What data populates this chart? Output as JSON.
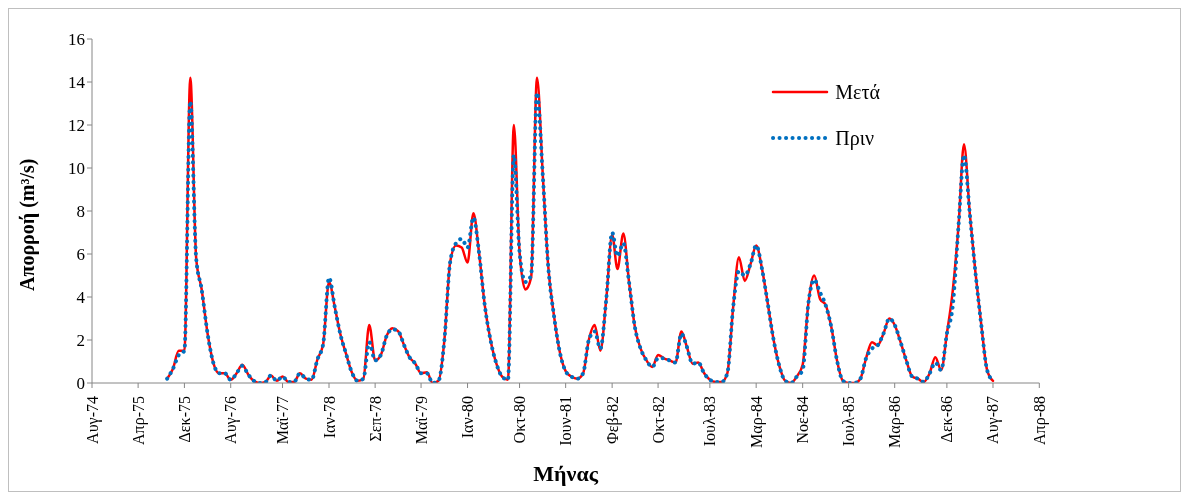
{
  "chart_data": {
    "type": "line",
    "xlabel": "Μήνας",
    "ylabel": "Απορροή (m³/s)",
    "x": [
      "1975-09",
      "1975-10",
      "1975-11",
      "1975-12",
      "1976-01",
      "1976-02",
      "1976-03",
      "1976-04",
      "1976-05",
      "1976-06",
      "1976-07",
      "1976-08",
      "1976-09",
      "1976-10",
      "1976-11",
      "1976-12",
      "1977-01",
      "1977-02",
      "1977-03",
      "1977-04",
      "1977-05",
      "1977-06",
      "1977-07",
      "1977-08",
      "1977-09",
      "1977-10",
      "1977-11",
      "1977-12",
      "1978-01",
      "1978-02",
      "1978-03",
      "1978-04",
      "1978-05",
      "1978-06",
      "1978-07",
      "1978-08",
      "1978-09",
      "1978-10",
      "1978-11",
      "1978-12",
      "1979-01",
      "1979-02",
      "1979-03",
      "1979-04",
      "1979-05",
      "1979-06",
      "1979-07",
      "1979-08",
      "1979-09",
      "1979-10",
      "1979-11",
      "1979-12",
      "1980-01",
      "1980-02",
      "1980-03",
      "1980-04",
      "1980-05",
      "1980-06",
      "1980-07",
      "1980-08",
      "1980-09",
      "1980-10",
      "1980-11",
      "1980-12",
      "1981-01",
      "1981-02",
      "1981-03",
      "1981-04",
      "1981-05",
      "1981-06",
      "1981-07",
      "1981-08",
      "1981-09",
      "1981-10",
      "1981-11",
      "1981-12",
      "1982-01",
      "1982-02",
      "1982-03",
      "1982-04",
      "1982-05",
      "1982-06",
      "1982-07",
      "1982-08",
      "1982-09",
      "1982-10",
      "1982-11",
      "1982-12",
      "1983-01",
      "1983-02",
      "1983-03",
      "1983-04",
      "1983-05",
      "1983-06",
      "1983-07",
      "1983-08",
      "1983-09",
      "1983-10",
      "1983-11",
      "1983-12",
      "1984-01",
      "1984-02",
      "1984-03",
      "1984-04",
      "1984-05",
      "1984-06",
      "1984-07",
      "1984-08",
      "1984-09",
      "1984-10",
      "1984-11",
      "1984-12",
      "1985-01",
      "1985-02",
      "1985-03",
      "1985-04",
      "1985-05",
      "1985-06",
      "1985-07",
      "1985-08",
      "1985-09",
      "1985-10",
      "1985-11",
      "1985-12",
      "1986-01",
      "1986-02",
      "1986-03",
      "1986-04",
      "1986-05",
      "1986-06",
      "1986-07",
      "1986-08",
      "1986-09",
      "1986-10",
      "1986-11",
      "1986-12",
      "1987-01",
      "1987-02",
      "1987-03",
      "1987-04",
      "1987-05",
      "1987-06",
      "1987-07",
      "1987-08"
    ],
    "series": [
      {
        "name": "Μετά",
        "color": "#ff0000",
        "line_style": "solid",
        "values": [
          0.2,
          0.65,
          1.5,
          1.5,
          14.2,
          5.8,
          4.35,
          2.3,
          0.95,
          0.45,
          0.45,
          0.15,
          0.45,
          0.85,
          0.4,
          0.1,
          0,
          0.05,
          0.35,
          0.1,
          0.3,
          0.05,
          0.05,
          0.45,
          0.2,
          0.15,
          1.1,
          1.8,
          4.7,
          3.5,
          2.3,
          1.35,
          0.5,
          0.1,
          0.2,
          2.7,
          1.05,
          1.3,
          2.2,
          2.55,
          2.4,
          1.75,
          1.2,
          0.9,
          0.45,
          0.5,
          0,
          0.1,
          2.0,
          5.6,
          6.4,
          6.3,
          5.6,
          7.9,
          6.1,
          3.6,
          2.0,
          0.9,
          0.3,
          0.15,
          12.0,
          6.1,
          4.35,
          4.9,
          14.2,
          9.6,
          5.45,
          3.1,
          1.45,
          0.55,
          0.3,
          0.2,
          0.45,
          2.0,
          2.7,
          1.5,
          3.9,
          6.9,
          5.3,
          6.95,
          4.7,
          2.6,
          1.6,
          1.05,
          0.75,
          1.3,
          1.15,
          1.05,
          0.95,
          2.4,
          1.7,
          0.9,
          0.95,
          0.45,
          0.15,
          0.05,
          0.05,
          0.45,
          3.55,
          5.85,
          4.75,
          5.55,
          6.4,
          5.3,
          3.7,
          2.0,
          0.8,
          0.1,
          0,
          0.3,
          0.85,
          3.7,
          5.0,
          3.9,
          3.65,
          2.6,
          1.05,
          0.1,
          0,
          0,
          0.2,
          1.15,
          1.9,
          1.75,
          2.3,
          3.0,
          2.7,
          1.9,
          1.05,
          0.3,
          0.2,
          0.05,
          0.45,
          1.2,
          0.6,
          2.3,
          4.3,
          7.4,
          11.1,
          7.85,
          5.1,
          2.65,
          0.6,
          0.1
        ]
      },
      {
        "name": "Πριν",
        "color": "#0070c0",
        "line_style": "dotted",
        "values": [
          0.2,
          0.65,
          1.3,
          1.5,
          13.1,
          5.8,
          4.35,
          2.3,
          0.95,
          0.45,
          0.45,
          0.15,
          0.45,
          0.8,
          0.4,
          0.1,
          0,
          0.05,
          0.35,
          0.1,
          0.3,
          0.05,
          0.05,
          0.45,
          0.2,
          0.15,
          1.1,
          1.8,
          4.9,
          3.5,
          2.3,
          1.35,
          0.5,
          0.1,
          0.2,
          1.9,
          1.05,
          1.3,
          2.2,
          2.5,
          2.4,
          1.75,
          1.2,
          0.9,
          0.45,
          0.45,
          0,
          0.1,
          2.0,
          5.6,
          6.5,
          6.7,
          6.3,
          7.7,
          6.1,
          3.6,
          2.0,
          0.9,
          0.3,
          0.15,
          10.6,
          6.1,
          4.7,
          5.0,
          13.5,
          9.6,
          5.45,
          3.1,
          1.45,
          0.55,
          0.3,
          0.2,
          0.45,
          2.0,
          2.4,
          1.6,
          3.9,
          7.0,
          5.9,
          6.5,
          4.7,
          2.6,
          1.6,
          1.05,
          0.75,
          1.15,
          1.15,
          1.05,
          0.95,
          2.3,
          1.7,
          0.9,
          0.95,
          0.45,
          0.15,
          0.05,
          0.05,
          0.45,
          3.55,
          5.2,
          5.0,
          5.55,
          6.4,
          5.3,
          3.7,
          2.0,
          0.8,
          0.1,
          0,
          0.3,
          0.6,
          3.7,
          4.8,
          4.2,
          3.65,
          2.6,
          1.05,
          0.1,
          0,
          0,
          0.2,
          1.15,
          1.6,
          1.75,
          2.3,
          3.0,
          2.7,
          1.9,
          1.05,
          0.3,
          0.2,
          0.05,
          0.45,
          0.95,
          0.6,
          2.3,
          3.6,
          7.4,
          10.6,
          7.85,
          5.1,
          2.65,
          0.6,
          0.1
        ]
      }
    ],
    "xlim": [
      "1974-08",
      "1988-04"
    ],
    "xticks": [
      {
        "value": "1974-08",
        "label": "Αυγ-74"
      },
      {
        "value": "1975-04",
        "label": "Απρ-75"
      },
      {
        "value": "1975-12",
        "label": "Δεκ-75"
      },
      {
        "value": "1976-08",
        "label": "Αυγ-76"
      },
      {
        "value": "1977-05",
        "label": "Μαϊ-77"
      },
      {
        "value": "1978-01",
        "label": "Ιαν-78"
      },
      {
        "value": "1978-09",
        "label": "Σεπ-78"
      },
      {
        "value": "1979-05",
        "label": "Μαϊ-79"
      },
      {
        "value": "1980-01",
        "label": "Ιαν-80"
      },
      {
        "value": "1980-10",
        "label": "Οκτ-80"
      },
      {
        "value": "1981-06",
        "label": "Ιουν-81"
      },
      {
        "value": "1982-02",
        "label": "Φεβ-82"
      },
      {
        "value": "1982-10",
        "label": "Οκτ-82"
      },
      {
        "value": "1983-07",
        "label": "Ιουλ-83"
      },
      {
        "value": "1984-03",
        "label": "Μαρ-84"
      },
      {
        "value": "1984-11",
        "label": "Νοε-84"
      },
      {
        "value": "1985-07",
        "label": "Ιουλ-85"
      },
      {
        "value": "1986-03",
        "label": "Μαρ-86"
      },
      {
        "value": "1986-12",
        "label": "Δεκ-86"
      },
      {
        "value": "1987-08",
        "label": "Αυγ-87"
      },
      {
        "value": "1988-04",
        "label": "Απρ-88"
      }
    ],
    "ylim": [
      0,
      16
    ],
    "yticks": [
      0,
      2,
      4,
      6,
      8,
      10,
      12,
      14,
      16
    ],
    "grid": false,
    "legend": "top right"
  }
}
